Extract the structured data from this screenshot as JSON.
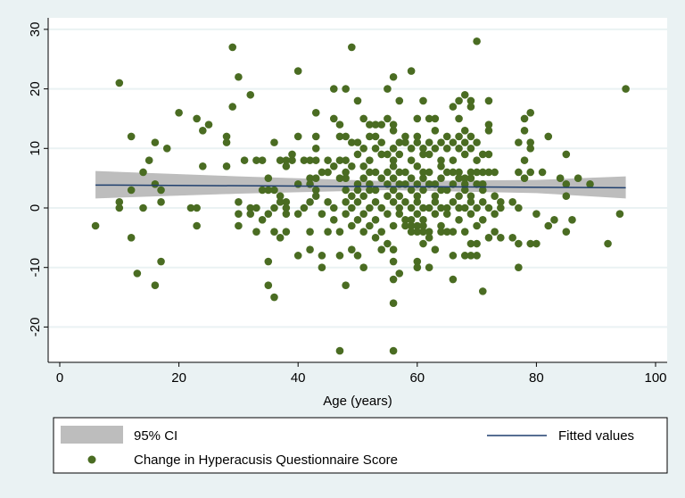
{
  "chart_data": {
    "type": "scatter",
    "xlabel": "Age (years)",
    "ylabel": "",
    "xlim": [
      0,
      100
    ],
    "ylim": [
      -25,
      31
    ],
    "xticks": [
      0,
      20,
      40,
      60,
      80,
      100
    ],
    "yticks": [
      -20,
      -10,
      0,
      10,
      20,
      30
    ],
    "grid": "horizontal",
    "legend_placement": "bottom",
    "colors": {
      "points": "#4a6c22",
      "fit": "#1f3f6e",
      "ci": "#bdbdbd",
      "background": "#eaf2f3"
    },
    "legend": {
      "ci_label": "95% CI",
      "fit_label": "Fitted values",
      "points_label": "Change in Hyperacusis Questionnaire Score"
    },
    "fit": {
      "x": [
        6,
        95
      ],
      "y": [
        3.85,
        3.4
      ]
    },
    "ci": {
      "x": [
        6,
        30,
        55,
        80,
        95
      ],
      "lower": [
        1.6,
        2.4,
        3.0,
        2.5,
        1.6
      ],
      "upper": [
        6.2,
        5.3,
        4.5,
        4.7,
        5.3
      ]
    },
    "points": [
      [
        6,
        -3
      ],
      [
        10,
        21
      ],
      [
        10,
        1
      ],
      [
        10,
        0
      ],
      [
        12,
        12
      ],
      [
        12,
        3
      ],
      [
        12,
        -5
      ],
      [
        13,
        -11
      ],
      [
        14,
        6
      ],
      [
        14,
        0
      ],
      [
        15,
        8
      ],
      [
        16,
        11
      ],
      [
        16,
        4
      ],
      [
        16,
        -13
      ],
      [
        17,
        3
      ],
      [
        17,
        1
      ],
      [
        17,
        -9
      ],
      [
        18,
        10
      ],
      [
        20,
        16
      ],
      [
        22,
        0
      ],
      [
        23,
        0
      ],
      [
        23,
        -3
      ],
      [
        23,
        15
      ],
      [
        24,
        13
      ],
      [
        25,
        14
      ],
      [
        24,
        7
      ],
      [
        28,
        12
      ],
      [
        28,
        11
      ],
      [
        28,
        7
      ],
      [
        29,
        27
      ],
      [
        29,
        17
      ],
      [
        30,
        22
      ],
      [
        30,
        1
      ],
      [
        30,
        -1
      ],
      [
        30,
        -3
      ],
      [
        31,
        8
      ],
      [
        32,
        19
      ],
      [
        32,
        0
      ],
      [
        32,
        -1
      ],
      [
        33,
        8
      ],
      [
        34,
        8
      ],
      [
        33,
        0
      ],
      [
        33,
        -4
      ],
      [
        34,
        -2
      ],
      [
        34,
        3
      ],
      [
        35,
        5
      ],
      [
        35,
        3
      ],
      [
        35,
        -1
      ],
      [
        35,
        -9
      ],
      [
        35,
        -13
      ],
      [
        36,
        11
      ],
      [
        36,
        -15
      ],
      [
        36,
        -4
      ],
      [
        36,
        3
      ],
      [
        36,
        0
      ],
      [
        37,
        8
      ],
      [
        37,
        2
      ],
      [
        37,
        1
      ],
      [
        37,
        -5
      ],
      [
        38,
        7
      ],
      [
        38,
        8
      ],
      [
        38,
        1
      ],
      [
        38,
        0
      ],
      [
        38,
        -1
      ],
      [
        38,
        -4
      ],
      [
        39,
        9
      ],
      [
        39,
        8
      ],
      [
        40,
        23
      ],
      [
        40,
        12
      ],
      [
        40,
        4
      ],
      [
        40,
        -1
      ],
      [
        40,
        -8
      ],
      [
        41,
        8
      ],
      [
        41,
        0
      ],
      [
        42,
        8
      ],
      [
        42,
        5
      ],
      [
        42,
        4
      ],
      [
        42,
        1
      ],
      [
        42,
        -4
      ],
      [
        42,
        -7
      ],
      [
        43,
        16
      ],
      [
        43,
        12
      ],
      [
        43,
        10
      ],
      [
        43,
        8
      ],
      [
        43,
        5
      ],
      [
        43,
        3
      ],
      [
        43,
        2
      ],
      [
        44,
        6
      ],
      [
        44,
        -1
      ],
      [
        44,
        -8
      ],
      [
        44,
        -10
      ],
      [
        45,
        8
      ],
      [
        45,
        6
      ],
      [
        45,
        1
      ],
      [
        45,
        -4
      ],
      [
        46,
        20
      ],
      [
        46,
        15
      ],
      [
        46,
        0
      ],
      [
        46,
        -2
      ],
      [
        46,
        7
      ],
      [
        47,
        14
      ],
      [
        47,
        12
      ],
      [
        47,
        8
      ],
      [
        47,
        5
      ],
      [
        47,
        -4
      ],
      [
        47,
        -8
      ],
      [
        47,
        -24
      ],
      [
        49,
        27
      ],
      [
        48,
        20
      ],
      [
        50,
        18
      ],
      [
        55,
        20
      ],
      [
        56,
        22
      ],
      [
        59,
        23
      ],
      [
        57,
        18
      ],
      [
        61,
        18
      ],
      [
        70,
        28
      ],
      [
        95,
        20
      ],
      [
        72,
        18
      ],
      [
        68,
        19
      ],
      [
        67,
        18
      ],
      [
        66,
        17
      ],
      [
        69,
        18
      ],
      [
        69,
        17
      ],
      [
        79,
        16
      ],
      [
        78,
        15
      ],
      [
        78,
        13
      ],
      [
        77,
        11
      ],
      [
        79,
        11
      ],
      [
        79,
        10
      ],
      [
        82,
        12
      ],
      [
        85,
        9
      ],
      [
        78,
        8
      ],
      [
        77,
        6
      ],
      [
        78,
        5
      ],
      [
        79,
        6
      ],
      [
        81,
        6
      ],
      [
        84,
        5
      ],
      [
        85,
        4
      ],
      [
        87,
        5
      ],
      [
        89,
        4
      ],
      [
        85,
        2
      ],
      [
        94,
        -1
      ],
      [
        92,
        -6
      ],
      [
        83,
        -2
      ],
      [
        82,
        -3
      ],
      [
        86,
        -2
      ],
      [
        85,
        -4
      ],
      [
        80,
        -1
      ],
      [
        77,
        0
      ],
      [
        79,
        -6
      ],
      [
        80,
        -6
      ],
      [
        76,
        -5
      ],
      [
        77,
        -6
      ],
      [
        77,
        -10
      ],
      [
        73,
        -4
      ],
      [
        74,
        -5
      ],
      [
        72,
        -5
      ],
      [
        71,
        -14
      ],
      [
        69,
        -6
      ],
      [
        70,
        -6
      ],
      [
        68,
        -8
      ],
      [
        69,
        -8
      ],
      [
        70,
        -8
      ],
      [
        66,
        -8
      ],
      [
        66,
        -12
      ],
      [
        60,
        -9
      ],
      [
        60,
        -10
      ],
      [
        62,
        -10
      ],
      [
        56,
        -9
      ],
      [
        57,
        -11
      ],
      [
        56,
        -12
      ],
      [
        56,
        -16
      ],
      [
        56,
        -24
      ],
      [
        48,
        -13
      ],
      [
        51,
        -10
      ],
      [
        54,
        -7
      ],
      [
        55,
        -6
      ],
      [
        56,
        -7
      ],
      [
        61,
        -6
      ],
      [
        62,
        -5
      ],
      [
        63,
        -7
      ],
      [
        64,
        -4
      ],
      [
        65,
        -4
      ],
      [
        66,
        -4
      ],
      [
        49,
        -7
      ],
      [
        50,
        -8
      ],
      [
        53,
        -5
      ],
      [
        58,
        -2
      ],
      [
        59,
        -2
      ],
      [
        58,
        -3
      ],
      [
        59,
        -3
      ],
      [
        60,
        -3
      ],
      [
        61,
        -4
      ],
      [
        59,
        -4
      ],
      [
        60,
        -4
      ],
      [
        51,
        15
      ],
      [
        52,
        14
      ],
      [
        53,
        14
      ],
      [
        54,
        14
      ],
      [
        55,
        15
      ],
      [
        56,
        14
      ],
      [
        60,
        15
      ],
      [
        62,
        15
      ],
      [
        63,
        15
      ],
      [
        67,
        15
      ],
      [
        72,
        14
      ],
      [
        56,
        13
      ],
      [
        58,
        12
      ],
      [
        60,
        12
      ],
      [
        63,
        13
      ],
      [
        65,
        12
      ],
      [
        67,
        12
      ],
      [
        68,
        13
      ],
      [
        69,
        12
      ],
      [
        72,
        13
      ],
      [
        53,
        12
      ],
      [
        48,
        12
      ],
      [
        50,
        11
      ],
      [
        52,
        12
      ],
      [
        49,
        11
      ],
      [
        51,
        10
      ],
      [
        54,
        11
      ],
      [
        56,
        10
      ],
      [
        57,
        11
      ],
      [
        58,
        11
      ],
      [
        59,
        10
      ],
      [
        60,
        11
      ],
      [
        61,
        10
      ],
      [
        62,
        11
      ],
      [
        63,
        10
      ],
      [
        64,
        11
      ],
      [
        65,
        10
      ],
      [
        66,
        11
      ],
      [
        67,
        10
      ],
      [
        68,
        11
      ],
      [
        69,
        10
      ],
      [
        70,
        11
      ],
      [
        71,
        9
      ],
      [
        48,
        8
      ],
      [
        50,
        9
      ],
      [
        52,
        8
      ],
      [
        54,
        9
      ],
      [
        55,
        9
      ],
      [
        56,
        8
      ],
      [
        57,
        9
      ],
      [
        59,
        8
      ],
      [
        61,
        9
      ],
      [
        62,
        9
      ],
      [
        64,
        8
      ],
      [
        66,
        8
      ],
      [
        68,
        9
      ],
      [
        70,
        8
      ],
      [
        72,
        9
      ],
      [
        53,
        10
      ],
      [
        48,
        6
      ],
      [
        49,
        7
      ],
      [
        51,
        7
      ],
      [
        52,
        6
      ],
      [
        53,
        6
      ],
      [
        55,
        6
      ],
      [
        56,
        7
      ],
      [
        57,
        6
      ],
      [
        58,
        6
      ],
      [
        60,
        7
      ],
      [
        61,
        6
      ],
      [
        62,
        6
      ],
      [
        64,
        7
      ],
      [
        65,
        6
      ],
      [
        66,
        6
      ],
      [
        67,
        6
      ],
      [
        68,
        5
      ],
      [
        69,
        6
      ],
      [
        70,
        6
      ],
      [
        71,
        6
      ],
      [
        72,
        6
      ],
      [
        73,
        6
      ],
      [
        48,
        5
      ],
      [
        50,
        4
      ],
      [
        51,
        5
      ],
      [
        52,
        4
      ],
      [
        54,
        5
      ],
      [
        55,
        4
      ],
      [
        56,
        5
      ],
      [
        57,
        4
      ],
      [
        58,
        4
      ],
      [
        59,
        5
      ],
      [
        60,
        4
      ],
      [
        61,
        5
      ],
      [
        62,
        4
      ],
      [
        63,
        4
      ],
      [
        64,
        5
      ],
      [
        66,
        4
      ],
      [
        67,
        5
      ],
      [
        68,
        4
      ],
      [
        69,
        5
      ],
      [
        70,
        4
      ],
      [
        71,
        4
      ],
      [
        48,
        3
      ],
      [
        49,
        2
      ],
      [
        50,
        3
      ],
      [
        51,
        2
      ],
      [
        52,
        3
      ],
      [
        53,
        3
      ],
      [
        55,
        2
      ],
      [
        56,
        3
      ],
      [
        57,
        2
      ],
      [
        59,
        3
      ],
      [
        60,
        2
      ],
      [
        61,
        3
      ],
      [
        63,
        2
      ],
      [
        64,
        3
      ],
      [
        65,
        3
      ],
      [
        67,
        2
      ],
      [
        68,
        3
      ],
      [
        69,
        2
      ],
      [
        71,
        3
      ],
      [
        73,
        2
      ],
      [
        74,
        1
      ],
      [
        48,
        1
      ],
      [
        49,
        0
      ],
      [
        50,
        1
      ],
      [
        52,
        0
      ],
      [
        53,
        1
      ],
      [
        54,
        0
      ],
      [
        56,
        1
      ],
      [
        57,
        0
      ],
      [
        58,
        1
      ],
      [
        59,
        0
      ],
      [
        60,
        1
      ],
      [
        61,
        0
      ],
      [
        62,
        0
      ],
      [
        63,
        1
      ],
      [
        64,
        0
      ],
      [
        65,
        0
      ],
      [
        66,
        1
      ],
      [
        67,
        0
      ],
      [
        68,
        0
      ],
      [
        69,
        1
      ],
      [
        70,
        0
      ],
      [
        71,
        1
      ],
      [
        72,
        0
      ],
      [
        74,
        0
      ],
      [
        76,
        1
      ],
      [
        48,
        -1
      ],
      [
        50,
        -2
      ],
      [
        51,
        -1
      ],
      [
        53,
        -2
      ],
      [
        55,
        -1
      ],
      [
        57,
        -1
      ],
      [
        60,
        -1
      ],
      [
        61,
        -2
      ],
      [
        63,
        -1
      ],
      [
        65,
        -1
      ],
      [
        67,
        -2
      ],
      [
        69,
        -1
      ],
      [
        71,
        -2
      ],
      [
        73,
        -1
      ],
      [
        49,
        -3
      ],
      [
        51,
        -4
      ],
      [
        52,
        -3
      ],
      [
        54,
        -4
      ],
      [
        56,
        -3
      ],
      [
        61,
        -3
      ],
      [
        62,
        -4
      ],
      [
        64,
        -3
      ],
      [
        68,
        -4
      ],
      [
        70,
        -3
      ]
    ]
  }
}
